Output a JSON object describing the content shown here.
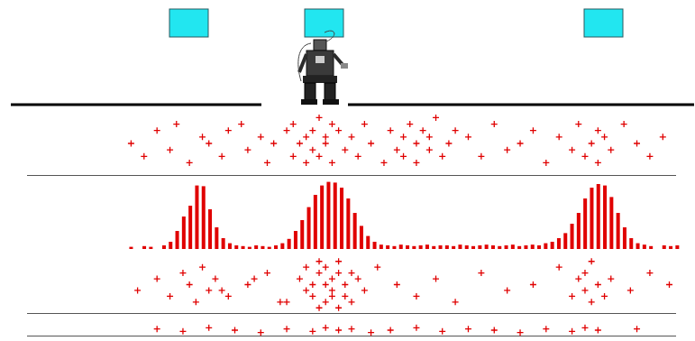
{
  "chart_data": [
    {
      "type": "scatter",
      "color": "#e00000",
      "marker": "cross",
      "grid": false,
      "tick_labels": false,
      "xlim": [
        0,
        100
      ],
      "ylim": [
        0,
        10
      ],
      "x": [
        16,
        18,
        20,
        22,
        23,
        25,
        27,
        28,
        30,
        31,
        33,
        34,
        36,
        37,
        38,
        40,
        41,
        41,
        42,
        43,
        43,
        44,
        44,
        45,
        45,
        46,
        46,
        47,
        47,
        48,
        49,
        50,
        51,
        52,
        53,
        55,
        56,
        57,
        58,
        58,
        59,
        60,
        60,
        61,
        62,
        62,
        63,
        64,
        65,
        66,
        68,
        70,
        72,
        74,
        76,
        78,
        80,
        82,
        84,
        85,
        86,
        87,
        88,
        88,
        89,
        90,
        92,
        94,
        96,
        98
      ],
      "values": [
        5,
        3,
        7,
        4,
        8,
        2,
        6,
        5,
        3,
        7,
        8,
        4,
        6,
        2,
        5,
        7,
        3,
        8,
        5,
        6,
        2,
        7,
        4,
        9,
        3,
        6,
        5,
        8,
        2,
        7,
        4,
        6,
        3,
        8,
        5,
        2,
        7,
        4,
        6,
        3,
        8,
        5,
        2,
        7,
        4,
        6,
        9,
        3,
        5,
        7,
        6,
        3,
        8,
        4,
        5,
        7,
        2,
        6,
        4,
        8,
        3,
        5,
        7,
        2,
        6,
        4,
        8,
        5,
        3,
        6
      ]
    },
    {
      "type": "histogram",
      "color": "#e00000",
      "grid": false,
      "tick_labels": false,
      "xlim": [
        0,
        100
      ],
      "ylim": [
        0,
        100
      ],
      "bins": [
        0,
        1,
        2,
        3,
        4,
        5,
        6,
        7,
        8,
        9,
        10,
        11,
        12,
        13,
        14,
        15,
        16,
        17,
        18,
        19,
        20,
        21,
        22,
        23,
        24,
        25,
        26,
        27,
        28,
        29,
        30,
        31,
        32,
        33,
        34,
        35,
        36,
        37,
        38,
        39,
        40,
        41,
        42,
        43,
        44,
        45,
        46,
        47,
        48,
        49,
        50,
        51,
        52,
        53,
        54,
        55,
        56,
        57,
        58,
        59,
        60,
        61,
        62,
        63,
        64,
        65,
        66,
        67,
        68,
        69,
        70,
        71,
        72,
        73,
        74,
        75,
        76,
        77,
        78,
        79,
        80,
        81,
        82,
        83,
        84,
        85,
        86,
        87,
        88,
        89,
        90,
        91,
        92,
        93,
        94,
        95,
        96,
        97,
        98,
        99,
        100
      ],
      "values": [
        0,
        0,
        0,
        0,
        0,
        0,
        0,
        0,
        0,
        0,
        0,
        0,
        0,
        0,
        0,
        0,
        3,
        0,
        4,
        3,
        0,
        5,
        10,
        25,
        45,
        60,
        88,
        87,
        55,
        30,
        15,
        8,
        5,
        4,
        3,
        5,
        4,
        3,
        5,
        8,
        14,
        25,
        40,
        58,
        75,
        88,
        93,
        92,
        85,
        70,
        50,
        32,
        18,
        10,
        6,
        5,
        4,
        6,
        5,
        4,
        5,
        6,
        4,
        5,
        5,
        4,
        6,
        5,
        4,
        5,
        6,
        5,
        4,
        5,
        6,
        4,
        5,
        6,
        5,
        8,
        10,
        15,
        22,
        35,
        50,
        70,
        85,
        90,
        88,
        72,
        50,
        30,
        15,
        8,
        6,
        4,
        0,
        5,
        4,
        5
      ]
    },
    {
      "type": "scatter",
      "color": "#e00000",
      "marker": "cross",
      "grid": false,
      "tick_labels": false,
      "xlim": [
        0,
        100
      ],
      "ylim": [
        0,
        10
      ],
      "x": [
        17,
        20,
        22,
        24,
        25,
        26,
        27,
        28,
        29,
        31,
        34,
        37,
        40,
        42,
        43,
        43,
        44,
        44,
        45,
        45,
        45,
        46,
        46,
        46,
        47,
        47,
        47,
        48,
        48,
        48,
        49,
        49,
        50,
        50,
        51,
        52,
        54,
        57,
        60,
        63,
        66,
        70,
        74,
        78,
        82,
        84,
        85,
        86,
        86,
        87,
        87,
        88,
        89,
        90,
        93,
        96,
        99,
        39,
        35,
        30
      ],
      "values": [
        4,
        6,
        3,
        7,
        5,
        2,
        8,
        4,
        6,
        3,
        5,
        7,
        2,
        6,
        4,
        8,
        3,
        5,
        7,
        1,
        9,
        2,
        5,
        8,
        3,
        6,
        4,
        7,
        1,
        9,
        5,
        3,
        7,
        2,
        6,
        4,
        8,
        5,
        3,
        6,
        2,
        7,
        4,
        5,
        8,
        3,
        6,
        4,
        7,
        2,
        9,
        5,
        3,
        6,
        4,
        7,
        5,
        2,
        6,
        4
      ]
    },
    {
      "type": "scatter",
      "color": "#e00000",
      "marker": "cross",
      "grid": false,
      "tick_labels": false,
      "xlim": [
        0,
        100
      ],
      "ylim": [
        0,
        10
      ],
      "x": [
        20,
        24,
        28,
        32,
        36,
        40,
        44,
        46,
        48,
        50,
        53,
        56,
        60,
        64,
        68,
        72,
        76,
        80,
        84,
        86,
        88,
        94
      ],
      "values": [
        6,
        4,
        7,
        5,
        3,
        6,
        4,
        7,
        5,
        6,
        3,
        5,
        7,
        4,
        6,
        5,
        3,
        6,
        4,
        7,
        5,
        6
      ]
    }
  ]
}
